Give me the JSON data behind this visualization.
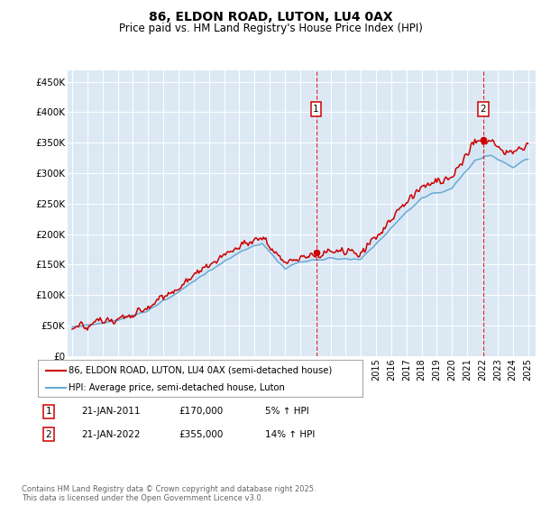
{
  "title": "86, ELDON ROAD, LUTON, LU4 0AX",
  "subtitle": "Price paid vs. HM Land Registry's House Price Index (HPI)",
  "ylabel_ticks": [
    "£0",
    "£50K",
    "£100K",
    "£150K",
    "£200K",
    "£250K",
    "£300K",
    "£350K",
    "£400K",
    "£450K"
  ],
  "ytick_values": [
    0,
    50000,
    100000,
    150000,
    200000,
    250000,
    300000,
    350000,
    400000,
    450000
  ],
  "ylim": [
    0,
    468000
  ],
  "xlim_start": 1994.7,
  "xlim_end": 2025.5,
  "plot_bg_color": "#dce9f5",
  "hpi_line_color": "#6aaad4",
  "price_line_color": "#cc0000",
  "fill_color": "#c5dcf0",
  "marker1_date": 2011.05,
  "marker2_date": 2022.05,
  "marker1_price": 170000,
  "marker2_price": 355000,
  "annotation1_label": "1",
  "annotation2_label": "2",
  "legend_label_price": "86, ELDON ROAD, LUTON, LU4 0AX (semi-detached house)",
  "legend_label_hpi": "HPI: Average price, semi-detached house, Luton",
  "table_row1": [
    "1",
    "21-JAN-2011",
    "£170,000",
    "5% ↑ HPI"
  ],
  "table_row2": [
    "2",
    "21-JAN-2022",
    "£355,000",
    "14% ↑ HPI"
  ],
  "footnote": "Contains HM Land Registry data © Crown copyright and database right 2025.\nThis data is licensed under the Open Government Licence v3.0.",
  "title_fontsize": 10,
  "subtitle_fontsize": 8.5
}
